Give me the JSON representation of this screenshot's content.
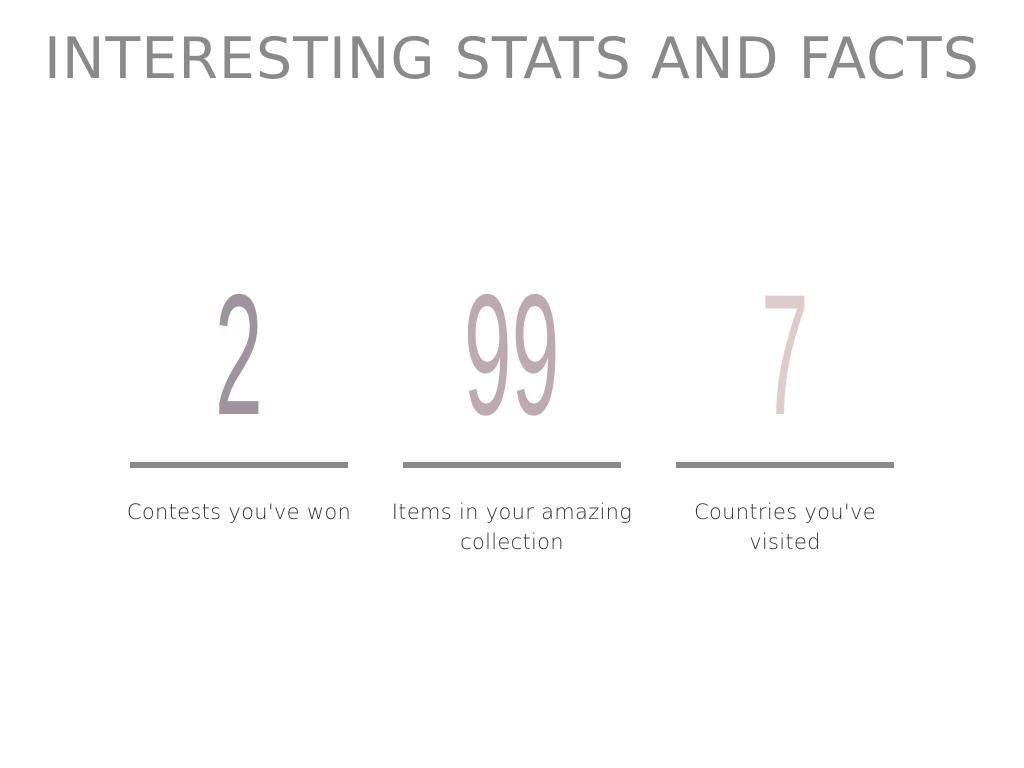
{
  "title": "INTERESTING STATS AND FACTS",
  "stats": [
    {
      "value": "2",
      "label": "Contests you've won",
      "color": "#9e939f"
    },
    {
      "value": "99",
      "label": "Items in your amazing collection",
      "color": "#bcaab0"
    },
    {
      "value": "7",
      "label": "Countries you've visited",
      "color": "#dccdca"
    }
  ],
  "divider_color": "#8a8a8a"
}
